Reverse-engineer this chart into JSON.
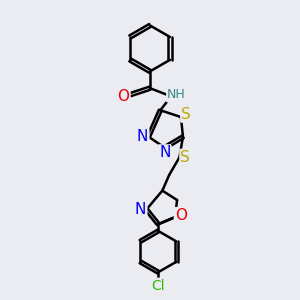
{
  "bg_color": "#ebebf2",
  "bond_color": "#000000",
  "bond_width": 1.8,
  "atom_colors": {
    "N": "#0000ee",
    "O": "#ee0000",
    "S": "#bbaa00",
    "Cl": "#33bb00",
    "C": "#000000",
    "H": "#3a8888"
  },
  "font_size": 10,
  "fig_size": [
    3.0,
    3.0
  ],
  "dpi": 100
}
